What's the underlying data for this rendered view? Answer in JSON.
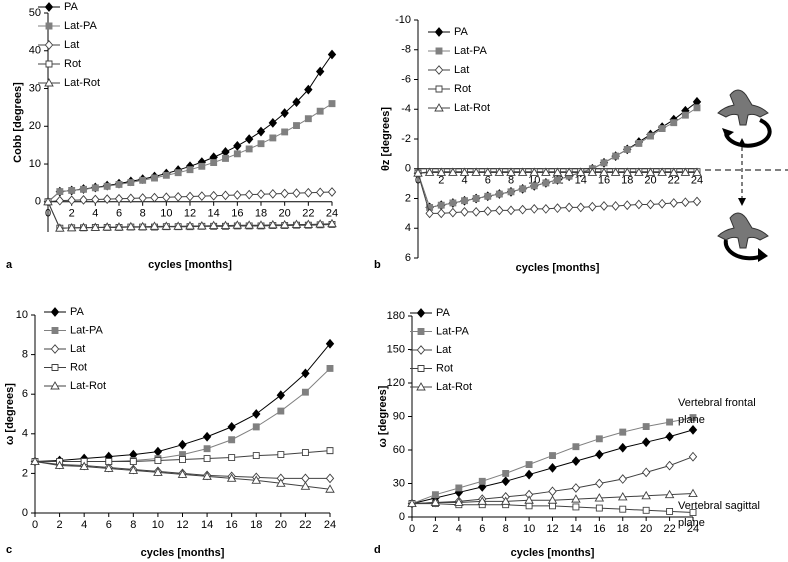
{
  "chart_data": [
    {
      "type": "line",
      "panel_label": "a",
      "x_label": "cycles [months]",
      "y_label": "Cobb [degrees]",
      "legend": "upper left",
      "x": [
        0,
        1,
        2,
        3,
        4,
        5,
        6,
        7,
        8,
        9,
        10,
        11,
        12,
        13,
        14,
        15,
        16,
        17,
        18,
        19,
        20,
        21,
        22,
        23,
        24
      ],
      "xlim": [
        0,
        24
      ],
      "xticks": [
        0,
        2,
        4,
        6,
        8,
        10,
        12,
        14,
        16,
        18,
        20,
        22,
        24
      ],
      "ylim": [
        -8,
        50
      ],
      "yticks": [
        0,
        10,
        20,
        30,
        40,
        50
      ],
      "series": [
        {
          "name": "PA",
          "color": "#000000",
          "marker": "diamond",
          "marker_fill": "#000000",
          "values": [
            0,
            2.7,
            3.0,
            3.4,
            3.8,
            4.3,
            4.8,
            5.4,
            6.0,
            6.7,
            7.5,
            8.4,
            9.4,
            10.5,
            11.8,
            13.2,
            14.8,
            16.6,
            18.6,
            20.9,
            23.5,
            26.4,
            29.7,
            34.5,
            39
          ]
        },
        {
          "name": "Lat-PA",
          "color": "#808080",
          "marker": "square",
          "marker_fill": "#808080",
          "values": [
            0,
            2.7,
            3.0,
            3.3,
            3.7,
            4.1,
            4.6,
            5.1,
            5.7,
            6.3,
            7.0,
            7.7,
            8.5,
            9.4,
            10.4,
            11.5,
            12.7,
            14.0,
            15.4,
            16.9,
            18.5,
            20.2,
            22.0,
            24.0,
            26
          ]
        },
        {
          "name": "Lat",
          "color": "#404040",
          "marker": "diamond",
          "marker_fill": "#ffffff",
          "values": [
            0,
            0.3,
            0.4,
            0.5,
            0.6,
            0.7,
            0.8,
            0.9,
            1.0,
            1.1,
            1.2,
            1.3,
            1.4,
            1.5,
            1.6,
            1.7,
            1.8,
            1.9,
            2.0,
            2.1,
            2.2,
            2.3,
            2.4,
            2.5,
            2.6
          ]
        },
        {
          "name": "Rot",
          "color": "#404040",
          "marker": "square",
          "marker_fill": "#ffffff",
          "values": [
            0,
            -7,
            -6.9,
            -6.9,
            -6.8,
            -6.8,
            -6.8,
            -6.7,
            -6.7,
            -6.7,
            -6.6,
            -6.6,
            -6.6,
            -6.5,
            -6.5,
            -6.5,
            -6.4,
            -6.4,
            -6.4,
            -6.3,
            -6.3,
            -6.2,
            -6.2,
            -6.1,
            -6
          ]
        },
        {
          "name": "Lat-Rot",
          "color": "#404040",
          "marker": "triangle",
          "marker_fill": "#ffffff",
          "values": [
            0,
            -7,
            -6.9,
            -6.8,
            -6.8,
            -6.7,
            -6.7,
            -6.6,
            -6.6,
            -6.5,
            -6.5,
            -6.5,
            -6.4,
            -6.4,
            -6.3,
            -6.3,
            -6.2,
            -6.2,
            -6.2,
            -6.1,
            -6.1,
            -6.0,
            -6.0,
            -5.9,
            -5.8
          ]
        }
      ]
    },
    {
      "type": "line",
      "panel_label": "b",
      "x_label": "cycles [months]",
      "y_label": "θz [degrees]",
      "legend": "upper left",
      "y_reversed": true,
      "x": [
        0,
        1,
        2,
        3,
        4,
        5,
        6,
        7,
        8,
        9,
        10,
        11,
        12,
        13,
        14,
        15,
        16,
        17,
        18,
        19,
        20,
        21,
        22,
        23,
        24
      ],
      "xlim": [
        0,
        24
      ],
      "xticks": [
        0,
        2,
        4,
        6,
        8,
        10,
        12,
        14,
        16,
        18,
        20,
        22,
        24
      ],
      "ylim": [
        -10,
        6
      ],
      "yticks": [
        -10,
        -8,
        -6,
        -4,
        -2,
        0,
        2,
        4,
        6
      ],
      "series": [
        {
          "name": "PA",
          "color": "#000000",
          "marker": "diamond",
          "marker_fill": "#000000",
          "values": [
            0.3,
            2.6,
            2.45,
            2.3,
            2.15,
            2.0,
            1.85,
            1.7,
            1.55,
            1.35,
            1.15,
            0.95,
            0.75,
            0.5,
            0.25,
            0,
            -0.4,
            -0.85,
            -1.3,
            -1.8,
            -2.3,
            -2.8,
            -3.3,
            -3.9,
            -4.5
          ]
        },
        {
          "name": "Lat-PA",
          "color": "#808080",
          "marker": "square",
          "marker_fill": "#808080",
          "values": [
            0.3,
            2.6,
            2.45,
            2.3,
            2.15,
            2.0,
            1.85,
            1.7,
            1.55,
            1.35,
            1.15,
            0.95,
            0.75,
            0.5,
            0.25,
            0,
            -0.4,
            -0.85,
            -1.3,
            -1.7,
            -2.2,
            -2.7,
            -3.1,
            -3.6,
            -4.1
          ]
        },
        {
          "name": "Lat",
          "color": "#404040",
          "marker": "diamond",
          "marker_fill": "#ffffff",
          "values": [
            0.3,
            3.0,
            3.0,
            2.95,
            2.9,
            2.9,
            2.85,
            2.8,
            2.8,
            2.75,
            2.7,
            2.7,
            2.65,
            2.6,
            2.6,
            2.55,
            2.5,
            2.5,
            2.45,
            2.4,
            2.4,
            2.35,
            2.3,
            2.25,
            2.2
          ]
        },
        {
          "name": "Rot",
          "color": "#404040",
          "marker": "square",
          "marker_fill": "#ffffff",
          "values": [
            0.3,
            0.2,
            0.2,
            0.2,
            0.2,
            0.2,
            0.2,
            0.2,
            0.2,
            0.2,
            0.2,
            0.2,
            0.2,
            0.2,
            0.2,
            0.2,
            0.2,
            0.2,
            0.2,
            0.2,
            0.2,
            0.2,
            0.2,
            0.2,
            0.2
          ]
        },
        {
          "name": "Lat-Rot",
          "color": "#404040",
          "marker": "triangle",
          "marker_fill": "#ffffff",
          "values": [
            0.3,
            0.25,
            0.25,
            0.25,
            0.25,
            0.25,
            0.25,
            0.25,
            0.25,
            0.25,
            0.25,
            0.25,
            0.25,
            0.25,
            0.25,
            0.25,
            0.25,
            0.25,
            0.25,
            0.25,
            0.25,
            0.25,
            0.25,
            0.25,
            0.25
          ]
        }
      ]
    },
    {
      "type": "line",
      "panel_label": "c",
      "x_label": "cycles [months]",
      "y_label": "ω [degrees]",
      "legend": "upper left",
      "x": [
        0,
        2,
        4,
        6,
        8,
        10,
        12,
        14,
        16,
        18,
        20,
        22,
        24
      ],
      "xlim": [
        0,
        24
      ],
      "xticks": [
        0,
        2,
        4,
        6,
        8,
        10,
        12,
        14,
        16,
        18,
        20,
        22,
        24
      ],
      "ylim": [
        0,
        10
      ],
      "yticks": [
        0,
        2,
        4,
        6,
        8,
        10
      ],
      "series": [
        {
          "name": "PA",
          "color": "#000000",
          "marker": "diamond",
          "marker_fill": "#000000",
          "values": [
            2.6,
            2.65,
            2.75,
            2.85,
            2.95,
            3.1,
            3.45,
            3.85,
            4.35,
            5.0,
            5.95,
            7.05,
            8.55
          ]
        },
        {
          "name": "Lat-PA",
          "color": "#808080",
          "marker": "square",
          "marker_fill": "#808080",
          "values": [
            2.6,
            2.6,
            2.6,
            2.6,
            2.65,
            2.75,
            2.95,
            3.25,
            3.7,
            4.35,
            5.15,
            6.1,
            7.3
          ]
        },
        {
          "name": "Lat",
          "color": "#404040",
          "marker": "diamond",
          "marker_fill": "#ffffff",
          "values": [
            2.6,
            2.45,
            2.4,
            2.3,
            2.2,
            2.1,
            2.0,
            1.9,
            1.85,
            1.8,
            1.75,
            1.75,
            1.75
          ]
        },
        {
          "name": "Rot",
          "color": "#404040",
          "marker": "square",
          "marker_fill": "#ffffff",
          "values": [
            2.6,
            2.6,
            2.6,
            2.6,
            2.6,
            2.65,
            2.7,
            2.75,
            2.8,
            2.9,
            2.95,
            3.05,
            3.15
          ]
        },
        {
          "name": "Lat-Rot",
          "color": "#404040",
          "marker": "triangle",
          "marker_fill": "#ffffff",
          "values": [
            2.6,
            2.4,
            2.35,
            2.25,
            2.15,
            2.05,
            1.95,
            1.85,
            1.75,
            1.65,
            1.5,
            1.35,
            1.2
          ]
        }
      ]
    },
    {
      "type": "line",
      "panel_label": "d",
      "x_label": "cycles [months]",
      "y_label": "ω [degrees]",
      "legend": "upper left",
      "x": [
        0,
        2,
        4,
        6,
        8,
        10,
        12,
        14,
        16,
        18,
        20,
        22,
        24
      ],
      "xlim": [
        0,
        24
      ],
      "xticks": [
        0,
        2,
        4,
        6,
        8,
        10,
        12,
        14,
        16,
        18,
        20,
        22,
        24
      ],
      "ylim": [
        0,
        180
      ],
      "yticks": [
        0,
        30,
        60,
        90,
        120,
        150,
        180
      ],
      "annotations": [
        {
          "lines": [
            "Vertebral frontal",
            "plane"
          ]
        },
        {
          "lines": [
            "Vertebral sagittal",
            "plane"
          ]
        }
      ],
      "series": [
        {
          "name": "PA",
          "color": "#000000",
          "marker": "diamond",
          "marker_fill": "#000000",
          "values": [
            12,
            17,
            22,
            27,
            32,
            38,
            44,
            50,
            56,
            62,
            67,
            72,
            78
          ]
        },
        {
          "name": "Lat-PA",
          "color": "#808080",
          "marker": "square",
          "marker_fill": "#808080",
          "values": [
            12,
            20,
            26,
            32,
            39,
            47,
            55,
            63,
            70,
            76,
            81,
            85,
            89
          ]
        },
        {
          "name": "Lat",
          "color": "#404040",
          "marker": "diamond",
          "marker_fill": "#ffffff",
          "values": [
            12,
            13,
            14,
            16,
            18,
            20,
            23,
            26,
            30,
            34,
            40,
            46,
            54
          ]
        },
        {
          "name": "Rot",
          "color": "#404040",
          "marker": "square",
          "marker_fill": "#ffffff",
          "values": [
            12,
            12,
            11,
            11,
            11,
            10,
            10,
            9,
            8,
            7,
            6,
            5,
            4
          ]
        },
        {
          "name": "Lat-Rot",
          "color": "#404040",
          "marker": "triangle",
          "marker_fill": "#ffffff",
          "values": [
            12,
            13,
            13,
            14,
            14,
            15,
            15,
            16,
            17,
            18,
            19,
            20,
            21
          ]
        }
      ]
    }
  ]
}
